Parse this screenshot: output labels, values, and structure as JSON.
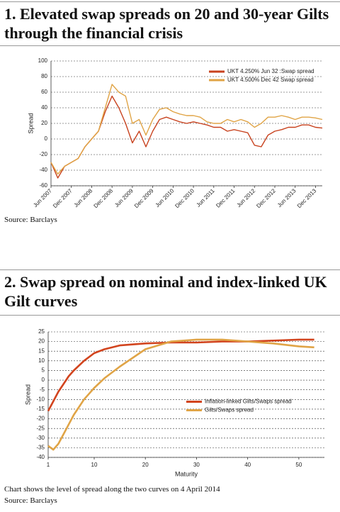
{
  "chart_data": [
    {
      "type": "line",
      "title": "1. Elevated swap spreads on 20 and 30-year Gilts through the financial crisis",
      "y_label": "Spread",
      "source": "Source: Barclays",
      "x": [
        "Jun 2007",
        "Aug 2007",
        "Oct 2007",
        "Dec 2007",
        "Feb 2008",
        "Apr 2008",
        "Jun 2008",
        "Aug 2008",
        "Oct 2008",
        "Dec 2008",
        "Feb 2009",
        "Apr 2009",
        "Jun 2009",
        "Aug 2009",
        "Oct 2009",
        "Dec 2009",
        "Feb 2010",
        "Apr 2010",
        "Jun 2010",
        "Aug 2010",
        "Oct 2010",
        "Dec 2010",
        "Feb 2011",
        "Apr 2011",
        "Jun 2011",
        "Aug 2011",
        "Oct 2011",
        "Dec 2011",
        "Feb 2012",
        "Apr 2012",
        "Jun 2012",
        "Aug 2012",
        "Oct 2012",
        "Dec 2012",
        "Feb 2013",
        "Apr 2013",
        "Jun 2013",
        "Aug 2013",
        "Oct 2013",
        "Dec 2013",
        "Feb 2014"
      ],
      "xticks": [
        "Jun 2007",
        "Dec 2007",
        "Jun 2008",
        "Dec 2008",
        "Jun 2009",
        "Dec 2009",
        "Jun 2010",
        "Dec 2010",
        "Jun 2011",
        "Dec 2011",
        "Jun 2012",
        "Dec 2012",
        "Jun 2013",
        "Dec 2013"
      ],
      "series": [
        {
          "name": "UKT 4.250% Jun 32 :Swap spread",
          "color": "#c8421e",
          "values": [
            -30,
            -50,
            -35,
            -30,
            -25,
            -10,
            0,
            10,
            35,
            55,
            40,
            20,
            -5,
            10,
            -10,
            10,
            25,
            28,
            25,
            22,
            20,
            22,
            20,
            18,
            15,
            15,
            10,
            12,
            10,
            8,
            -8,
            -10,
            5,
            10,
            12,
            15,
            15,
            18,
            18,
            15,
            14
          ]
        },
        {
          "name": "UKT 4.500% Dec 42 Swap spread",
          "color": "#e0a446",
          "values": [
            -30,
            -45,
            -35,
            -30,
            -25,
            -10,
            0,
            10,
            40,
            70,
            60,
            55,
            20,
            25,
            5,
            25,
            38,
            40,
            35,
            32,
            30,
            30,
            28,
            22,
            20,
            20,
            25,
            22,
            25,
            22,
            15,
            20,
            28,
            28,
            30,
            28,
            25,
            28,
            28,
            27,
            25
          ]
        }
      ],
      "ylim": [
        -60,
        100
      ],
      "yticks": [
        -60,
        -40,
        -20,
        0,
        20,
        40,
        60,
        80,
        100
      ],
      "grid": true,
      "legend": "upper right"
    },
    {
      "type": "line",
      "title": "2. Swap spread on nominal and index-linked UK Gilt curves",
      "x_label": "Maturity",
      "y_label": "Spread",
      "footnote": "Chart shows the level of spread along the two curves on 4 April 2014",
      "source": "Source: Barclays",
      "x": [
        1,
        2,
        3,
        4,
        5,
        6,
        8,
        10,
        12,
        15,
        20,
        25,
        30,
        35,
        40,
        45,
        50,
        53
      ],
      "xlim": [
        1,
        55
      ],
      "xticks": [
        1,
        10,
        20,
        30,
        40,
        50
      ],
      "series": [
        {
          "name": "Inflation-linked Gilts/Swaps spread",
          "color": "#d2441e",
          "values": [
            -16,
            -11,
            -6,
            -2,
            2,
            5,
            10,
            14,
            16,
            18,
            19,
            19.5,
            19.5,
            20,
            20,
            20.5,
            21,
            21
          ]
        },
        {
          "name": "Gilts/Swaps spread",
          "color": "#e0a446",
          "values": [
            -34,
            -36,
            -33,
            -28,
            -23,
            -18,
            -10,
            -4,
            1,
            7,
            16,
            20,
            21,
            21,
            20,
            19,
            17.5,
            17
          ]
        }
      ],
      "ylim": [
        -40,
        25
      ],
      "yticks": [
        -40,
        -35,
        -30,
        -25,
        -20,
        -15,
        -10,
        -5,
        0,
        5,
        10,
        15,
        20,
        25
      ],
      "grid": true,
      "legend": "center right"
    }
  ]
}
